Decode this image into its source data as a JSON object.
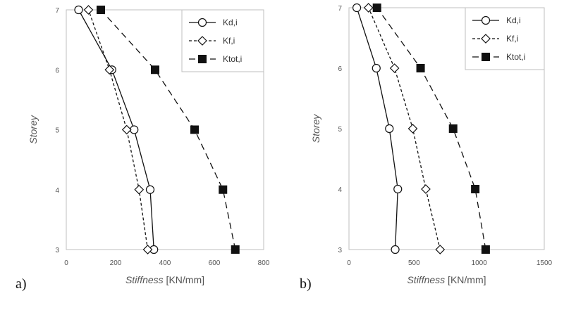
{
  "chart_data": [
    {
      "type": "line",
      "panel_label": "a)",
      "xlabel_italic": "Stiffness",
      "xlabel_unit": " [KN/mm]",
      "ylabel": "Storey",
      "xlim": [
        0,
        800
      ],
      "ylim": [
        3,
        7
      ],
      "xticks": [
        "0",
        "200",
        "400",
        "600",
        "800"
      ],
      "yticks": [
        "3",
        "4",
        "5",
        "6",
        "7"
      ],
      "grid": false,
      "legend_position": "top-right",
      "series": [
        {
          "name": "Kd,i",
          "marker": "circle",
          "line": "solid",
          "points": [
            {
              "x": 355,
              "y": 3
            },
            {
              "x": 340,
              "y": 4
            },
            {
              "x": 275,
              "y": 5
            },
            {
              "x": 185,
              "y": 6
            },
            {
              "x": 50,
              "y": 7
            }
          ]
        },
        {
          "name": "Kf,i",
          "marker": "diamond",
          "line": "dashed",
          "points": [
            {
              "x": 330,
              "y": 3
            },
            {
              "x": 295,
              "y": 4
            },
            {
              "x": 245,
              "y": 5
            },
            {
              "x": 175,
              "y": 6
            },
            {
              "x": 90,
              "y": 7
            }
          ]
        },
        {
          "name": "Ktot,i",
          "marker": "square",
          "line": "longdash",
          "points": [
            {
              "x": 685,
              "y": 3
            },
            {
              "x": 635,
              "y": 4
            },
            {
              "x": 520,
              "y": 5
            },
            {
              "x": 360,
              "y": 6
            },
            {
              "x": 140,
              "y": 7
            }
          ]
        }
      ]
    },
    {
      "type": "line",
      "panel_label": "b)",
      "xlabel_italic": "Stiffness",
      "xlabel_unit": " [KN/mm]",
      "ylabel": "Storey",
      "xlim": [
        0,
        1500
      ],
      "ylim": [
        3,
        7
      ],
      "xticks": [
        "0",
        "500",
        "1000",
        "1500"
      ],
      "yticks": [
        "3",
        "4",
        "5",
        "6",
        "7"
      ],
      "grid": false,
      "legend_position": "top-right",
      "series": [
        {
          "name": "Kd,i",
          "marker": "circle",
          "line": "solid",
          "points": [
            {
              "x": 355,
              "y": 3
            },
            {
              "x": 375,
              "y": 4
            },
            {
              "x": 310,
              "y": 5
            },
            {
              "x": 210,
              "y": 6
            },
            {
              "x": 60,
              "y": 7
            }
          ]
        },
        {
          "name": "Kf,i",
          "marker": "diamond",
          "line": "dashed",
          "points": [
            {
              "x": 700,
              "y": 3
            },
            {
              "x": 590,
              "y": 4
            },
            {
              "x": 490,
              "y": 5
            },
            {
              "x": 350,
              "y": 6
            },
            {
              "x": 150,
              "y": 7
            }
          ]
        },
        {
          "name": "Ktot,i",
          "marker": "square",
          "line": "longdash",
          "points": [
            {
              "x": 1050,
              "y": 3
            },
            {
              "x": 970,
              "y": 4
            },
            {
              "x": 800,
              "y": 5
            },
            {
              "x": 550,
              "y": 6
            },
            {
              "x": 215,
              "y": 7
            }
          ]
        }
      ]
    }
  ]
}
